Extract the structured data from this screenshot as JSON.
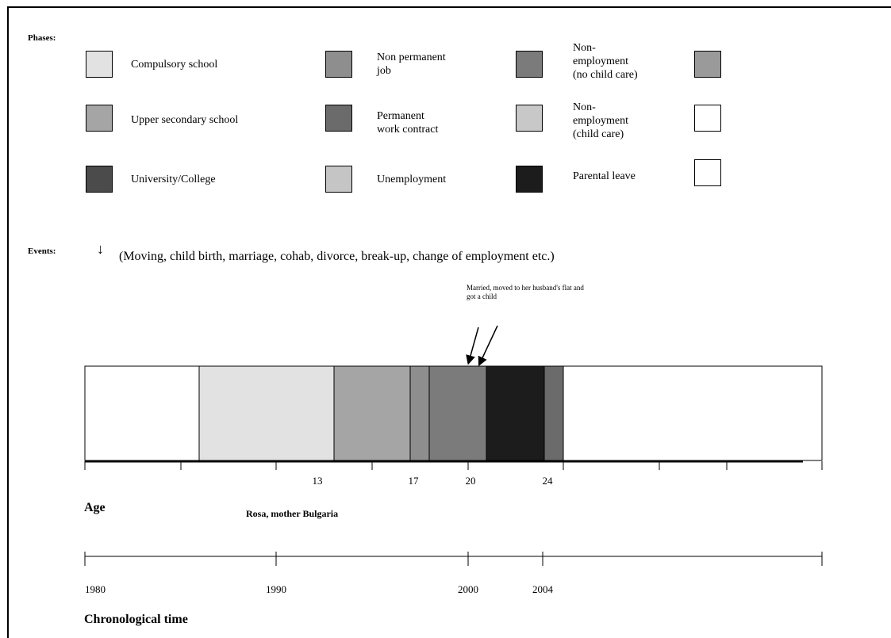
{
  "phases_label": "Phases:",
  "events_label": "Events:",
  "legend": [
    {
      "label": "Compulsory school",
      "color": "#e2e2e2"
    },
    {
      "label": "Upper secondary school",
      "color": "#a5a5a5"
    },
    {
      "label": "University/College",
      "color": "#4b4b4b"
    },
    {
      "label": "Non permanent\njob",
      "color": "#8e8e8e"
    },
    {
      "label": "Permanent\nwork contract",
      "color": "#6b6b6b"
    },
    {
      "label": "Unemployment",
      "color": "#c5c5c5"
    },
    {
      "label": "Non-\nemployment\n(no child care)",
      "color": "#7b7b7b"
    },
    {
      "label": "Non-\nemployment\n(child care)",
      "color": "#c8c8c8"
    },
    {
      "label": "Parental leave",
      "color": "#1c1c1c"
    },
    {
      "label": "",
      "color": "#9a9a9a"
    },
    {
      "label": "",
      "color": "#ffffff"
    },
    {
      "label": "",
      "color": "#ffffff"
    }
  ],
  "events_description": "(Moving, child birth, marriage, cohab, divorce, break-up, change of employment etc.)",
  "annotation": "Married, moved to her husband's flat and got a child",
  "timeline": {
    "segments": [
      {
        "phase": "Compulsory school",
        "color": "#e2e2e2"
      },
      {
        "phase": "Upper secondary school",
        "color": "#a5a5a5"
      },
      {
        "phase": "Non permanent job",
        "color": "#8e8e8e"
      },
      {
        "phase": "Non-employment (no child care)",
        "color": "#7b7b7b"
      },
      {
        "phase": "Parental leave",
        "color": "#1c1c1c"
      },
      {
        "phase": "Permanent work contract",
        "color": "#6b6b6b"
      }
    ]
  },
  "age_ticks": [
    "13",
    "17",
    "20",
    "24"
  ],
  "age_label": "Age",
  "person_label": "Rosa, mother Bulgaria",
  "year_ticks": [
    "1980",
    "1990",
    "2000",
    "2004"
  ],
  "time_label": "Chronological time"
}
